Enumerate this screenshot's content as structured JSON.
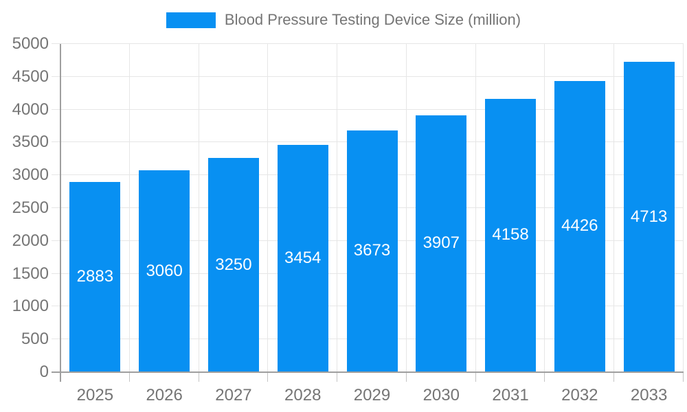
{
  "legend": {
    "label": "Blood Pressure Testing Device Size (million)"
  },
  "chart_data": {
    "type": "bar",
    "title": "Blood Pressure Testing Device Size (million)",
    "categories": [
      "2025",
      "2026",
      "2027",
      "2028",
      "2029",
      "2030",
      "2031",
      "2032",
      "2033"
    ],
    "values": [
      2883,
      3060,
      3250,
      3454,
      3673,
      3907,
      4158,
      4426,
      4713
    ],
    "xlabel": "",
    "ylabel": "",
    "ylim": [
      0,
      5000
    ],
    "ytick_step": 500,
    "y_tick_labels": [
      "0",
      "500",
      "1000",
      "1500",
      "2000",
      "2500",
      "3000",
      "3500",
      "4000",
      "4500",
      "5000"
    ],
    "grid": true,
    "legend_position": "top-center",
    "value_labels": "inside-center",
    "colors": {
      "bar": "#0890f2",
      "value_label": "#ffffff",
      "axis_text": "#757575",
      "gridline": "#e6e6e6",
      "axis_line": "#9e9e9e",
      "tick": "#c4c4c4"
    }
  }
}
